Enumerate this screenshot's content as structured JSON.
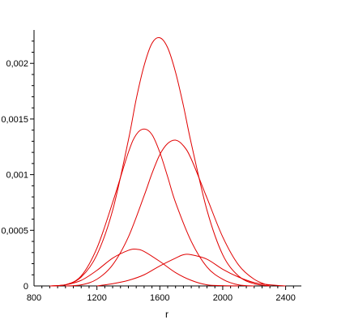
{
  "chart_data": {
    "type": "line",
    "xlabel": "r",
    "ylabel": "",
    "xlim": [
      800,
      2500
    ],
    "ylim": [
      0,
      0.0023
    ],
    "x_ticks": [
      800,
      1200,
      1600,
      2000,
      2400
    ],
    "x_tick_labels": [
      "800",
      "1200",
      "1600",
      "2000",
      "2400"
    ],
    "y_ticks": [
      0,
      0.0005,
      0.001,
      0.0015,
      0.002
    ],
    "y_tick_labels": [
      "0",
      "0,0005",
      "0,001",
      "0,0015",
      "0,002"
    ],
    "grid": false,
    "legend": "none",
    "line_color": "#e00000",
    "series": [
      {
        "x": [
          900,
          1000,
          1100,
          1200,
          1300,
          1400,
          1450,
          1500,
          1550,
          1600,
          1650,
          1700,
          1750,
          1800,
          1900,
          2000,
          2100,
          2200,
          2300
        ],
        "y": [
          0,
          1e-05,
          8e-05,
          0.00028,
          0.00068,
          0.00131,
          0.00168,
          0.00198,
          0.00218,
          0.00223,
          0.00214,
          0.00192,
          0.00162,
          0.00128,
          0.00068,
          0.00028,
          9e-05,
          2e-05,
          0
        ]
      },
      {
        "x": [
          900,
          1000,
          1100,
          1200,
          1300,
          1400,
          1450,
          1500,
          1550,
          1600,
          1650,
          1700,
          1800,
          1900,
          2000,
          2100,
          2200
        ],
        "y": [
          0,
          1e-05,
          9e-05,
          0.00034,
          0.00075,
          0.0012,
          0.00136,
          0.00141,
          0.00136,
          0.0012,
          0.00098,
          0.00075,
          0.0004,
          0.00017,
          6e-05,
          1e-05,
          0
        ]
      },
      {
        "x": [
          1000,
          1100,
          1200,
          1300,
          1400,
          1500,
          1550,
          1600,
          1650,
          1700,
          1750,
          1800,
          1900,
          2000,
          2100,
          2200,
          2300
        ],
        "y": [
          0,
          1e-05,
          6e-05,
          0.00019,
          0.00044,
          0.00081,
          0.00101,
          0.00118,
          0.00128,
          0.00131,
          0.00126,
          0.00114,
          0.00079,
          0.00044,
          0.00019,
          6e-05,
          0
        ]
      },
      {
        "x": [
          900,
          1000,
          1100,
          1200,
          1300,
          1400,
          1450,
          1500,
          1600,
          1700,
          1800,
          1900,
          2000,
          2100
        ],
        "y": [
          0,
          1e-05,
          5e-05,
          0.00014,
          0.00025,
          0.00032,
          0.00033,
          0.00031,
          0.00022,
          0.00012,
          5e-05,
          1e-05,
          3e-06,
          0
        ]
      },
      {
        "x": [
          1200,
          1300,
          1400,
          1500,
          1600,
          1700,
          1750,
          1800,
          1900,
          2000,
          2100,
          2200,
          2300,
          2400
        ],
        "y": [
          0,
          2e-05,
          5e-05,
          0.0001,
          0.00018,
          0.00025,
          0.00028,
          0.00028,
          0.00024,
          0.00015,
          8e-05,
          3e-05,
          1e-05,
          0
        ]
      }
    ]
  }
}
